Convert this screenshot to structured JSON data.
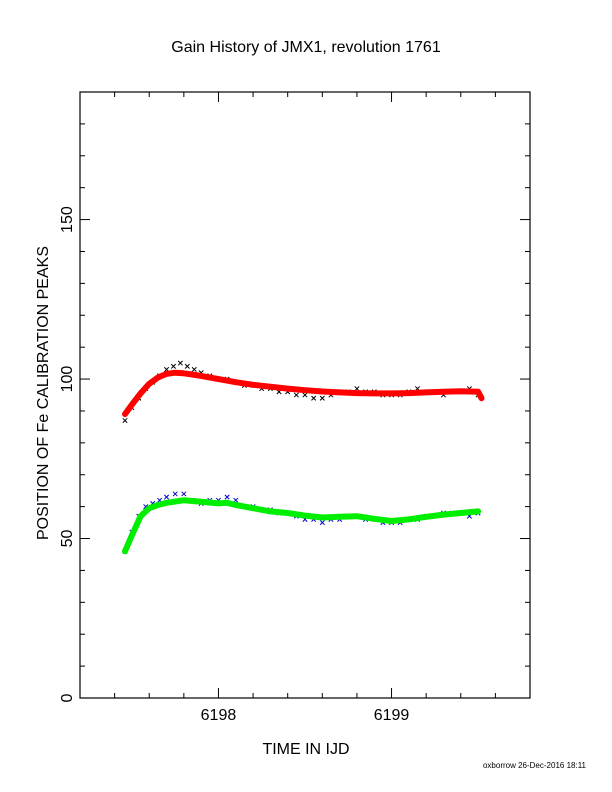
{
  "chart_data": {
    "type": "scatter",
    "title": "Gain History of JMX1, revolution 1761",
    "xlabel": "TIME IN IJD",
    "ylabel": "POSITION OF Fe CALIBRATION PEAKS",
    "footer": "oxborrow 26-Dec-2016 18:11",
    "xlim": [
      6197.2,
      6199.8
    ],
    "ylim": [
      0,
      190
    ],
    "x_ticks": [
      6198,
      6199
    ],
    "x_tick_labels": [
      "6198",
      "6199"
    ],
    "y_ticks": [
      0,
      50,
      100,
      150
    ],
    "y_tick_labels": [
      "0",
      "50",
      "100",
      "150"
    ],
    "grid": false,
    "legend": "none",
    "series": [
      {
        "kind": "scatter",
        "marker": "x",
        "color": "#000000",
        "points": [
          [
            6197.46,
            87
          ],
          [
            6197.5,
            91
          ],
          [
            6197.54,
            94
          ],
          [
            6197.58,
            97
          ],
          [
            6197.62,
            99
          ],
          [
            6197.66,
            101
          ],
          [
            6197.7,
            103
          ],
          [
            6197.74,
            104
          ],
          [
            6197.78,
            105
          ],
          [
            6197.82,
            104
          ],
          [
            6197.86,
            103
          ],
          [
            6197.9,
            102
          ],
          [
            6197.95,
            101
          ],
          [
            6198.0,
            100
          ],
          [
            6198.05,
            100
          ],
          [
            6198.1,
            99
          ],
          [
            6198.15,
            98
          ],
          [
            6198.2,
            98
          ],
          [
            6198.25,
            97
          ],
          [
            6198.3,
            97
          ],
          [
            6198.35,
            96
          ],
          [
            6198.4,
            96
          ],
          [
            6198.45,
            95
          ],
          [
            6198.5,
            95
          ],
          [
            6198.55,
            94
          ],
          [
            6198.6,
            94
          ],
          [
            6198.65,
            95
          ],
          [
            6198.7,
            96
          ],
          [
            6198.75,
            96
          ],
          [
            6198.8,
            97
          ],
          [
            6198.85,
            96
          ],
          [
            6198.9,
            96
          ],
          [
            6198.95,
            95
          ],
          [
            6199.0,
            95
          ],
          [
            6199.05,
            95
          ],
          [
            6199.1,
            96
          ],
          [
            6199.15,
            97
          ],
          [
            6199.2,
            96
          ],
          [
            6199.25,
            96
          ],
          [
            6199.3,
            95
          ],
          [
            6199.35,
            96
          ],
          [
            6199.4,
            96
          ],
          [
            6199.45,
            97
          ],
          [
            6199.5,
            95
          ]
        ]
      },
      {
        "kind": "line",
        "color": "#ff0000",
        "points": [
          [
            6197.46,
            89
          ],
          [
            6197.5,
            92
          ],
          [
            6197.55,
            95.5
          ],
          [
            6197.6,
            98.5
          ],
          [
            6197.65,
            100.5
          ],
          [
            6197.7,
            101.6
          ],
          [
            6197.75,
            102
          ],
          [
            6197.8,
            101.8
          ],
          [
            6197.9,
            101
          ],
          [
            6198.0,
            100
          ],
          [
            6198.1,
            99
          ],
          [
            6198.2,
            98.2
          ],
          [
            6198.3,
            97.6
          ],
          [
            6198.4,
            97
          ],
          [
            6198.5,
            96.5
          ],
          [
            6198.6,
            96.1
          ],
          [
            6198.7,
            95.8
          ],
          [
            6198.8,
            95.6
          ],
          [
            6198.9,
            95.5
          ],
          [
            6199.0,
            95.5
          ],
          [
            6199.1,
            95.6
          ],
          [
            6199.2,
            95.8
          ],
          [
            6199.3,
            96
          ],
          [
            6199.4,
            96.2
          ],
          [
            6199.5,
            96
          ],
          [
            6199.52,
            94
          ]
        ]
      },
      {
        "kind": "scatter",
        "marker": "x",
        "color": "#0000cc",
        "points": [
          [
            6197.46,
            46
          ],
          [
            6197.5,
            52
          ],
          [
            6197.54,
            57
          ],
          [
            6197.58,
            60
          ],
          [
            6197.62,
            61
          ],
          [
            6197.66,
            62
          ],
          [
            6197.7,
            63
          ],
          [
            6197.75,
            64
          ],
          [
            6197.8,
            64
          ],
          [
            6197.85,
            62
          ],
          [
            6197.9,
            61
          ],
          [
            6197.95,
            62
          ],
          [
            6198.0,
            62
          ],
          [
            6198.05,
            63
          ],
          [
            6198.1,
            62
          ],
          [
            6198.15,
            60
          ],
          [
            6198.2,
            60
          ],
          [
            6198.25,
            59
          ],
          [
            6198.3,
            59
          ],
          [
            6198.35,
            58
          ],
          [
            6198.4,
            58
          ],
          [
            6198.45,
            57
          ],
          [
            6198.5,
            56
          ],
          [
            6198.55,
            56
          ],
          [
            6198.6,
            55
          ],
          [
            6198.65,
            56
          ],
          [
            6198.7,
            56
          ],
          [
            6198.75,
            57
          ],
          [
            6198.8,
            57
          ],
          [
            6198.85,
            56
          ],
          [
            6198.9,
            56
          ],
          [
            6198.95,
            55
          ],
          [
            6199.0,
            55
          ],
          [
            6199.05,
            55
          ],
          [
            6199.1,
            56
          ],
          [
            6199.15,
            56
          ],
          [
            6199.2,
            57
          ],
          [
            6199.25,
            57
          ],
          [
            6199.3,
            58
          ],
          [
            6199.35,
            58
          ],
          [
            6199.4,
            58
          ],
          [
            6199.45,
            57
          ],
          [
            6199.5,
            58
          ]
        ]
      },
      {
        "kind": "line",
        "color": "#00ee00",
        "points": [
          [
            6197.46,
            46
          ],
          [
            6197.5,
            51
          ],
          [
            6197.55,
            57
          ],
          [
            6197.6,
            59.5
          ],
          [
            6197.65,
            60.5
          ],
          [
            6197.7,
            61.2
          ],
          [
            6197.8,
            62
          ],
          [
            6197.9,
            61.5
          ],
          [
            6198.0,
            61
          ],
          [
            6198.05,
            61.2
          ],
          [
            6198.1,
            60.5
          ],
          [
            6198.2,
            59.5
          ],
          [
            6198.3,
            58.5
          ],
          [
            6198.4,
            58
          ],
          [
            6198.5,
            57.2
          ],
          [
            6198.6,
            56.6
          ],
          [
            6198.7,
            56.8
          ],
          [
            6198.8,
            57
          ],
          [
            6198.9,
            56.2
          ],
          [
            6199.0,
            55.5
          ],
          [
            6199.1,
            56
          ],
          [
            6199.2,
            56.8
          ],
          [
            6199.3,
            57.5
          ],
          [
            6199.4,
            58
          ],
          [
            6199.5,
            58.5
          ]
        ]
      }
    ]
  }
}
